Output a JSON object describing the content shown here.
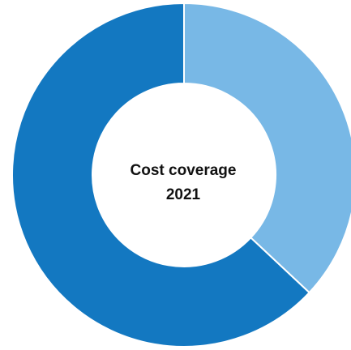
{
  "chart_data": {
    "type": "pie",
    "donut": true,
    "center_title_line1": "Cost coverage",
    "center_title_line2": "2021",
    "categories": [
      "Light blue segment",
      "Dark blue segment"
    ],
    "values": [
      37,
      63
    ],
    "colors": [
      "#78b8e6",
      "#1378c1"
    ]
  },
  "colors": {
    "background": "#ffffff",
    "separator": "#ffffff",
    "text": "#111111"
  }
}
